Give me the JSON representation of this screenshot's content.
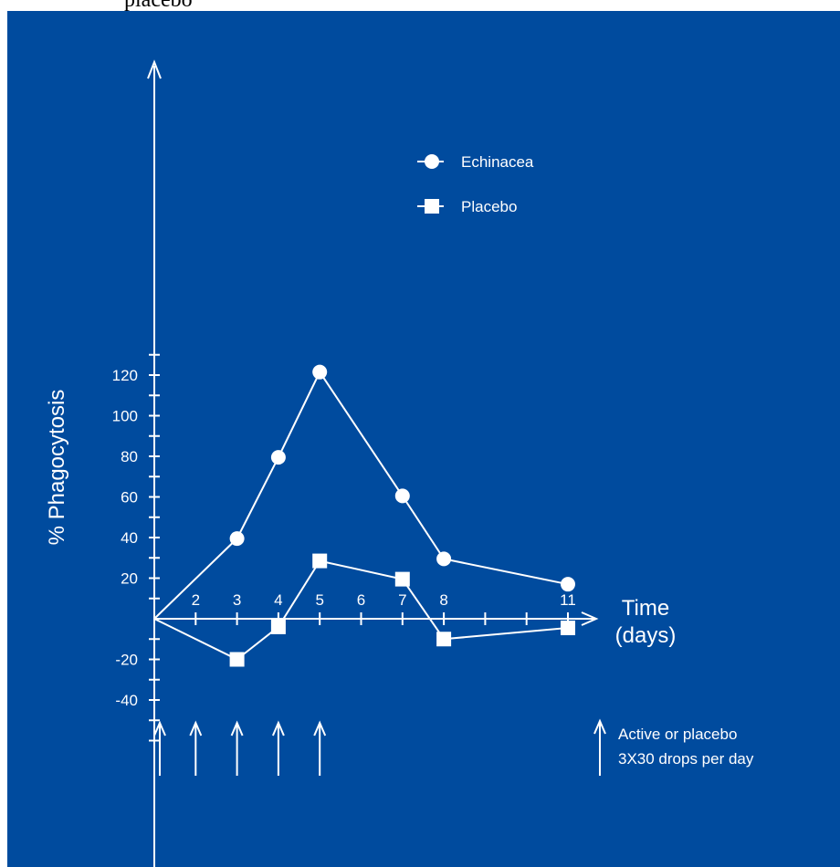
{
  "top_caption": "placebo",
  "colors": {
    "background": "#004b9e",
    "foreground": "#ffffff",
    "page": "#ffffff"
  },
  "chart_data": {
    "type": "line",
    "ylabel": "% Phagocytosis",
    "xlabel_line1": "Time",
    "xlabel_line2": "(days)",
    "x_tick_labels": [
      "2",
      "3",
      "4",
      "5",
      "6",
      "7",
      "8",
      "11"
    ],
    "y_tick_labels": [
      "120",
      "100",
      "80",
      "60",
      "40",
      "20",
      "-20",
      "-40"
    ],
    "ylim": [
      -55,
      140
    ],
    "xlim": [
      1,
      12
    ],
    "grid": false,
    "legend_position": "top-right",
    "series": [
      {
        "name": "Echinacea",
        "marker": "circle",
        "x": [
          1,
          3,
          4,
          5,
          7,
          8,
          11
        ],
        "y": [
          0,
          39.5,
          79.5,
          121.5,
          60.5,
          29.5,
          17
        ]
      },
      {
        "name": "Placebo",
        "marker": "square",
        "x": [
          1,
          3,
          4,
          5,
          7,
          8,
          11
        ],
        "y": [
          0,
          -20,
          -4,
          28.5,
          19.5,
          -10,
          -4.5
        ]
      }
    ],
    "dosing_days": [
      1,
      2,
      3,
      4,
      5
    ],
    "dosing_note": [
      "Active or placebo",
      "3X30 drops per day"
    ]
  }
}
